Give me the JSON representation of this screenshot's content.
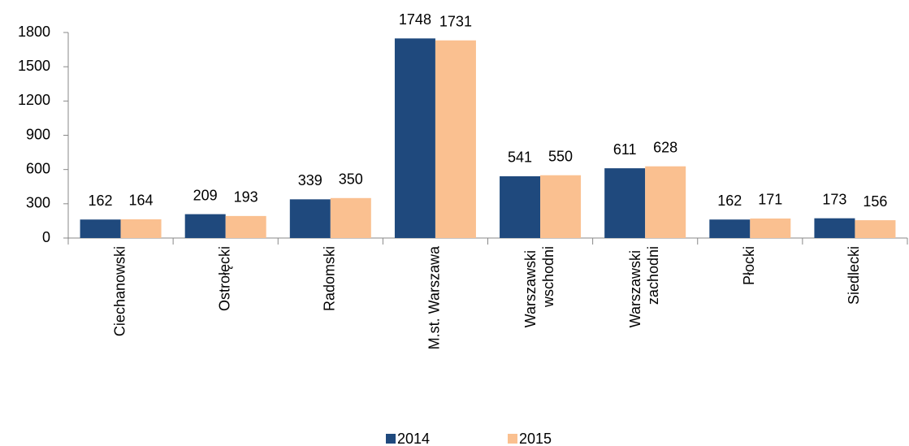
{
  "chart_data": {
    "type": "bar",
    "categories": [
      "Ciechanowski",
      "Ostrołęcki",
      "Radomski",
      "M.st. Warszawa",
      "Warszawski wschodni",
      "Warszawski zachodni",
      "Płocki",
      "Siedlecki"
    ],
    "series": [
      {
        "name": "2014",
        "color": "#1f497d",
        "values": [
          162,
          209,
          339,
          1748,
          541,
          611,
          162,
          173
        ]
      },
      {
        "name": "2015",
        "color": "#fac090",
        "values": [
          164,
          193,
          350,
          1731,
          550,
          628,
          171,
          156
        ]
      }
    ],
    "ylim": [
      0,
      1800
    ],
    "yticks": [
      0,
      300,
      600,
      900,
      1200,
      1500,
      1800
    ],
    "legend": "bottom"
  }
}
